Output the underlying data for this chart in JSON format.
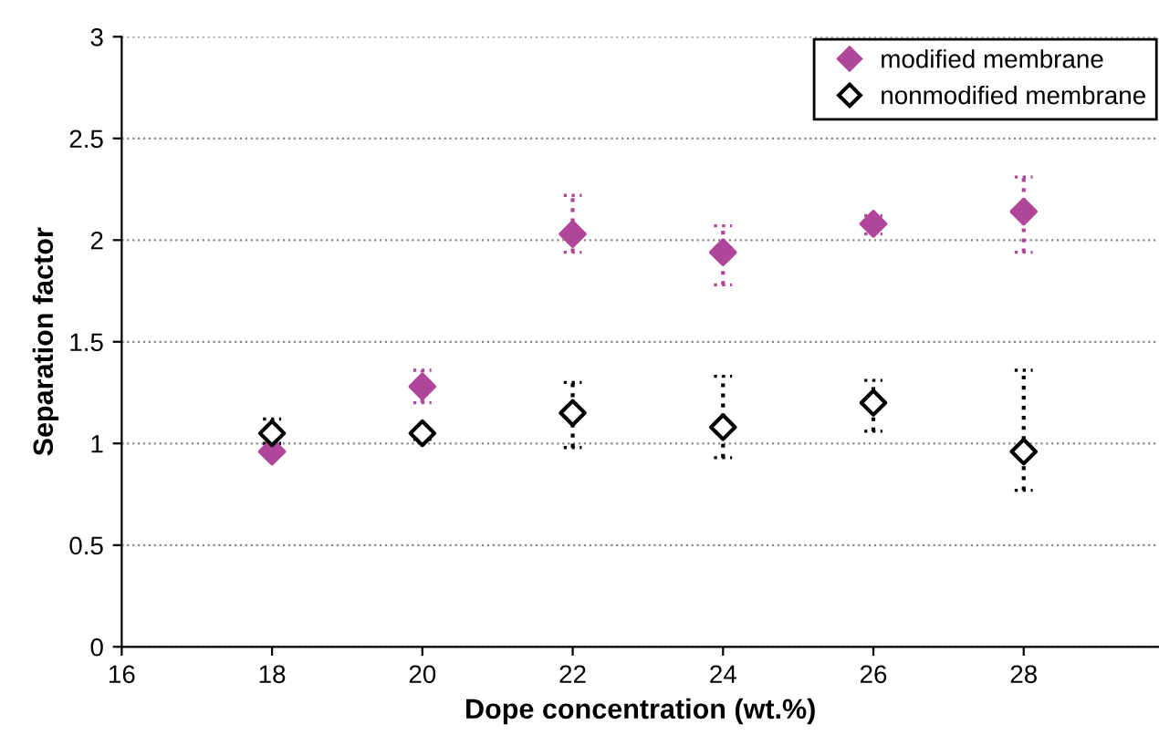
{
  "chart_data": {
    "type": "scatter",
    "xlabel": "Dope concentration (wt.%)",
    "ylabel": "Separation factor",
    "x": [
      18,
      20,
      22,
      24,
      26,
      28
    ],
    "series": [
      {
        "name": "modified membrane",
        "color": "#b0469a",
        "values": [
          0.96,
          1.28,
          2.03,
          1.94,
          2.08,
          2.14
        ],
        "errors": [
          null,
          [
            1.2,
            1.36
          ],
          [
            1.94,
            2.22
          ],
          [
            1.78,
            2.07
          ],
          [
            2.03,
            2.12
          ],
          [
            1.94,
            2.31
          ]
        ]
      },
      {
        "name": "nonmodified membrane",
        "color": "#000000",
        "values": [
          1.05,
          1.05,
          1.15,
          1.08,
          1.2,
          0.96
        ],
        "errors": [
          [
            1.0,
            1.12
          ],
          [
            1.02,
            1.07
          ],
          [
            0.98,
            1.3
          ],
          [
            0.93,
            1.33
          ],
          [
            1.06,
            1.31
          ],
          [
            0.77,
            1.36
          ]
        ]
      }
    ],
    "xlim": [
      16,
      29.8
    ],
    "xticks": [
      16,
      18,
      20,
      22,
      24,
      26,
      28
    ],
    "ylim": [
      0,
      3
    ],
    "yticks": [
      0,
      0.5,
      1,
      1.5,
      2,
      2.5,
      3
    ],
    "grid": "y",
    "legend": "top right",
    "marker": "diamond",
    "line_style": "dotted"
  }
}
